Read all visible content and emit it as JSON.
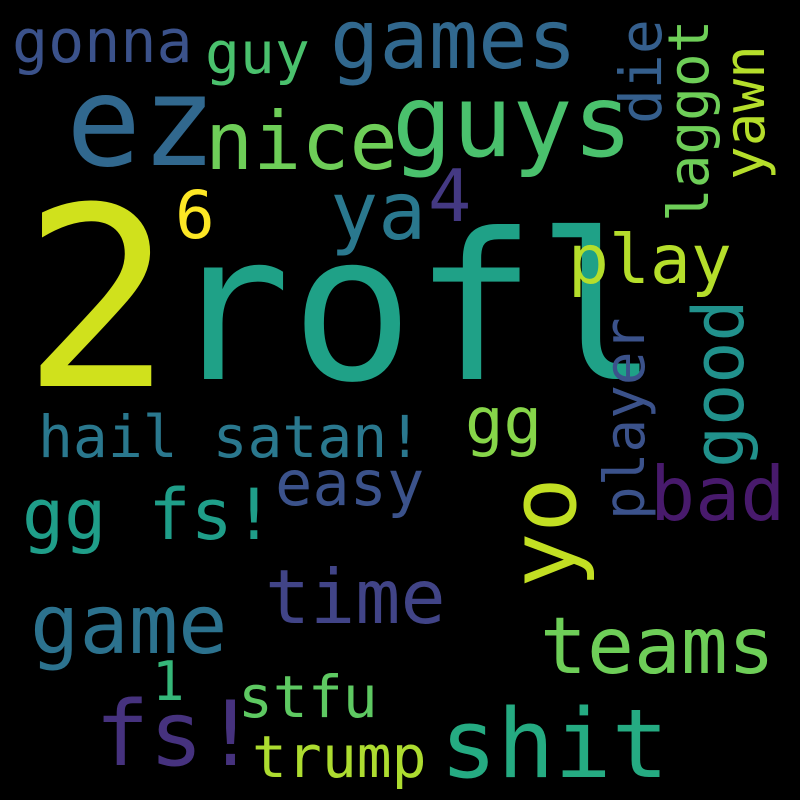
{
  "words": [
    {
      "text": "2",
      "color": "#d0e11c",
      "orientation": "horizontal"
    },
    {
      "text": "rofl",
      "color": "#1fa187",
      "orientation": "horizontal"
    },
    {
      "text": "ez",
      "color": "#31688e",
      "orientation": "horizontal"
    },
    {
      "text": "guys",
      "color": "#4ac16d",
      "orientation": "horizontal"
    },
    {
      "text": "games",
      "color": "#31688e",
      "orientation": "horizontal"
    },
    {
      "text": "nice",
      "color": "#6ece58",
      "orientation": "horizontal"
    },
    {
      "text": "gonna",
      "color": "#3b528b",
      "orientation": "horizontal"
    },
    {
      "text": "guy",
      "color": "#4ac16d",
      "orientation": "horizontal"
    },
    {
      "text": "die",
      "color": "#355f8d",
      "orientation": "vertical"
    },
    {
      "text": "laggot",
      "color": "#6ece58",
      "orientation": "vertical"
    },
    {
      "text": "yawn",
      "color": "#b5de2b",
      "orientation": "vertical"
    },
    {
      "text": "6",
      "color": "#fde725",
      "orientation": "horizontal"
    },
    {
      "text": "ya",
      "color": "#2a788e",
      "orientation": "horizontal"
    },
    {
      "text": "4",
      "color": "#443983",
      "orientation": "horizontal"
    },
    {
      "text": "play",
      "color": "#b5de2b",
      "orientation": "horizontal"
    },
    {
      "text": "good",
      "color": "#21918c",
      "orientation": "vertical"
    },
    {
      "text": "player",
      "color": "#3b528b",
      "orientation": "vertical"
    },
    {
      "text": "gg",
      "color": "#86d549",
      "orientation": "horizontal"
    },
    {
      "text": "hail satan!",
      "color": "#2a788e",
      "orientation": "horizontal"
    },
    {
      "text": "yo",
      "color": "#c2df23",
      "orientation": "vertical"
    },
    {
      "text": "bad",
      "color": "#481a6c",
      "orientation": "horizontal"
    },
    {
      "text": "easy",
      "color": "#3b528b",
      "orientation": "horizontal"
    },
    {
      "text": "gg fs!",
      "color": "#1f9e89",
      "orientation": "horizontal"
    },
    {
      "text": "time",
      "color": "#414487",
      "orientation": "horizontal"
    },
    {
      "text": "game",
      "color": "#2c728e",
      "orientation": "horizontal"
    },
    {
      "text": "teams",
      "color": "#6ece58",
      "orientation": "horizontal"
    },
    {
      "text": "1",
      "color": "#35b779",
      "orientation": "horizontal"
    },
    {
      "text": "stfu",
      "color": "#5ec962",
      "orientation": "horizontal"
    },
    {
      "text": "fs!",
      "color": "#46327e",
      "orientation": "horizontal"
    },
    {
      "text": "shit",
      "color": "#25ab82",
      "orientation": "horizontal"
    },
    {
      "text": "trump",
      "color": "#addc30",
      "orientation": "horizontal"
    }
  ]
}
